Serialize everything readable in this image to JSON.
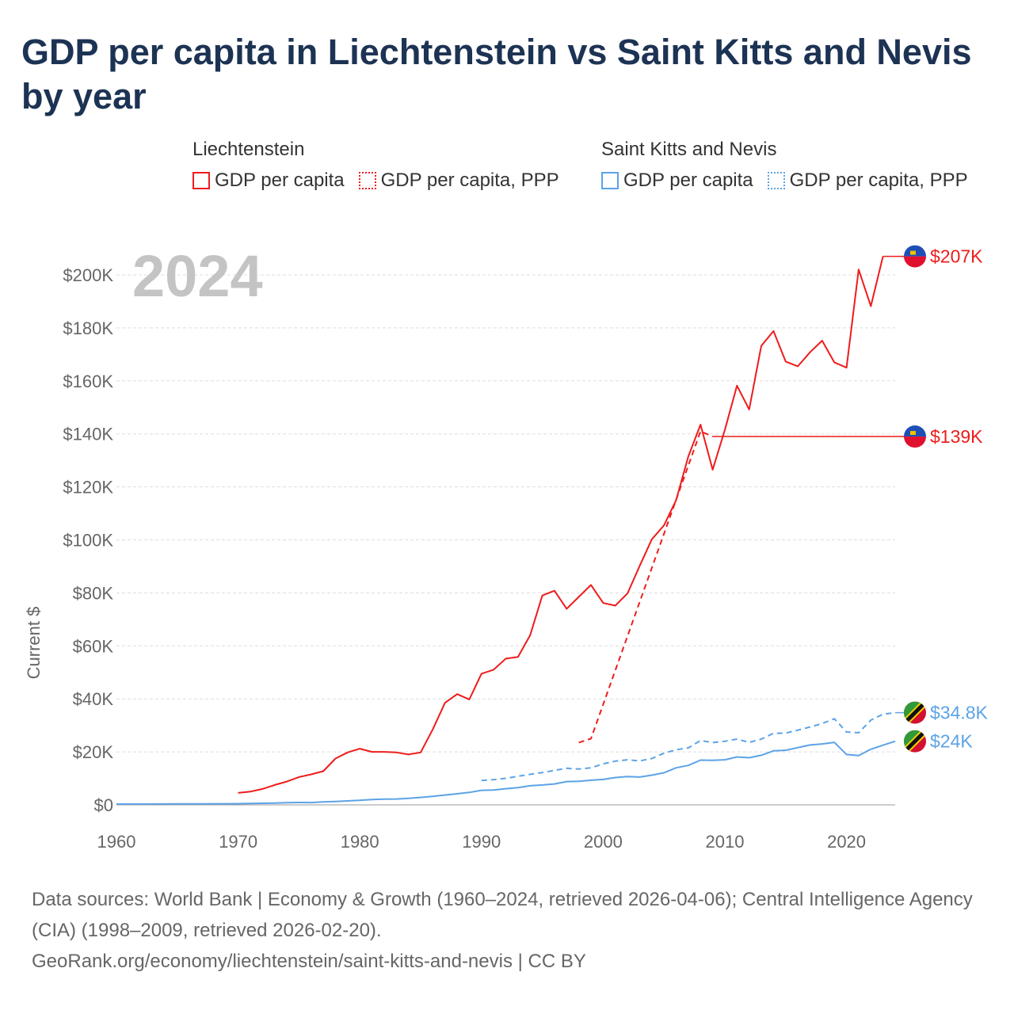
{
  "title": "GDP per capita in Liechtenstein vs Saint Kitts and Nevis by year",
  "legend": {
    "groups": [
      {
        "name": "Liechtenstein",
        "items": [
          "GDP per capita",
          "GDP per capita, PPP"
        ],
        "color": "#ee1c1c"
      },
      {
        "name": "Saint Kitts and Nevis",
        "items": [
          "GDP per capita",
          "GDP per capita, PPP"
        ],
        "color": "#5ca3e6"
      }
    ]
  },
  "chart_data": {
    "type": "line",
    "year_label": "2024",
    "ylabel": "Current $",
    "xlim": [
      1960,
      2024
    ],
    "ylim": [
      0,
      200000
    ],
    "x_ticks": [
      1960,
      1970,
      1980,
      1990,
      2000,
      2010,
      2020
    ],
    "x_tick_labels": [
      "1960",
      "1970",
      "1980",
      "1990",
      "2000",
      "2010",
      "2020"
    ],
    "y_ticks": [
      0,
      20000,
      40000,
      60000,
      80000,
      100000,
      120000,
      140000,
      160000,
      180000,
      200000
    ],
    "y_tick_labels": [
      "$0",
      "$20K",
      "$40K",
      "$60K",
      "$80K",
      "$100K",
      "$120K",
      "$140K",
      "$160K",
      "$180K",
      "$200K"
    ],
    "grid": true,
    "series": [
      {
        "name": "Liechtenstein GDP per capita",
        "color": "#ee1c1c",
        "dash": "solid",
        "end_label": "$207K",
        "extend_to_label": true,
        "x": [
          1970,
          1971,
          1972,
          1973,
          1974,
          1975,
          1976,
          1977,
          1978,
          1979,
          1980,
          1981,
          1982,
          1983,
          1984,
          1985,
          1986,
          1987,
          1988,
          1989,
          1990,
          1991,
          1992,
          1993,
          1994,
          1995,
          1996,
          1997,
          1998,
          1999,
          2000,
          2001,
          2002,
          2003,
          2004,
          2005,
          2006,
          2007,
          2008,
          2009,
          2010,
          2011,
          2012,
          2013,
          2014,
          2015,
          2016,
          2017,
          2018,
          2019,
          2020,
          2021,
          2022,
          2023
        ],
        "y": [
          4500,
          5000,
          6000,
          7500,
          8800,
          10500,
          11500,
          12700,
          17500,
          19800,
          21200,
          20000,
          20000,
          19800,
          19000,
          19800,
          28500,
          38500,
          41800,
          39800,
          49500,
          51000,
          55200,
          55800,
          64000,
          79000,
          80800,
          74000,
          78500,
          83000,
          76200,
          75200,
          79800,
          90200,
          100200,
          105500,
          115000,
          131500,
          143500,
          126500,
          141500,
          158200,
          149200,
          173200,
          178800,
          167300,
          165500,
          170800,
          175200,
          167000,
          165000,
          202000,
          188200,
          207000
        ]
      },
      {
        "name": "Liechtenstein GDP per capita, PPP",
        "color": "#ee1c1c",
        "dash": "dashed",
        "end_label": "$139K",
        "extend_to_label": true,
        "x": [
          1998,
          1999,
          2008,
          2009
        ],
        "y": [
          23500,
          25000,
          141000,
          139000
        ]
      },
      {
        "name": "Saint Kitts and Nevis GDP per capita",
        "color": "#5ca3e6",
        "dash": "solid",
        "end_label": "$24K",
        "extend_to_label": false,
        "x": [
          1960,
          1961,
          1962,
          1963,
          1964,
          1965,
          1966,
          1967,
          1968,
          1969,
          1970,
          1971,
          1972,
          1973,
          1974,
          1975,
          1976,
          1977,
          1978,
          1979,
          1980,
          1981,
          1982,
          1983,
          1984,
          1985,
          1986,
          1987,
          1988,
          1989,
          1990,
          1991,
          1992,
          1993,
          1994,
          1995,
          1996,
          1997,
          1998,
          1999,
          2000,
          2001,
          2002,
          2003,
          2004,
          2005,
          2006,
          2007,
          2008,
          2009,
          2010,
          2011,
          2012,
          2013,
          2014,
          2015,
          2016,
          2017,
          2018,
          2019,
          2020,
          2021,
          2022,
          2023,
          2024
        ],
        "y": [
          300,
          300,
          300,
          320,
          330,
          350,
          370,
          390,
          410,
          430,
          460,
          520,
          600,
          680,
          820,
          900,
          880,
          1150,
          1300,
          1500,
          1700,
          2000,
          2150,
          2200,
          2450,
          2800,
          3200,
          3700,
          4200,
          4700,
          5500,
          5600,
          6100,
          6500,
          7200,
          7500,
          7900,
          8800,
          8900,
          9300,
          9600,
          10300,
          10700,
          10500,
          11200,
          12100,
          14000,
          14900,
          16900,
          16800,
          17000,
          18100,
          17800,
          18700,
          20400,
          20600,
          21600,
          22600,
          23000,
          23600,
          19000,
          18600,
          21000,
          22500,
          24000
        ]
      },
      {
        "name": "Saint Kitts and Nevis GDP per capita, PPP",
        "color": "#5ca3e6",
        "dash": "dashed",
        "end_label": "$34.8K",
        "extend_to_label": true,
        "x": [
          1990,
          1991,
          1992,
          1993,
          1994,
          1995,
          1996,
          1997,
          1998,
          1999,
          2000,
          2001,
          2002,
          2003,
          2004,
          2005,
          2006,
          2007,
          2008,
          2009,
          2010,
          2011,
          2012,
          2013,
          2014,
          2015,
          2016,
          2017,
          2018,
          2019,
          2020,
          2021,
          2022,
          2023,
          2024
        ],
        "y": [
          9200,
          9500,
          10000,
          10800,
          11500,
          12200,
          13000,
          13800,
          13500,
          14000,
          15500,
          16500,
          17000,
          16600,
          17500,
          19500,
          20800,
          21500,
          24300,
          23500,
          24000,
          24800,
          23600,
          24800,
          27000,
          27100,
          28200,
          29400,
          30700,
          32500,
          27500,
          27200,
          32000,
          34200,
          34800
        ]
      }
    ]
  },
  "footer": {
    "line1": "Data sources: World Bank | Economy & Growth (1960–2024, retrieved 2026-04-06); Central Intelligence Agency (CIA) (1998–2009, retrieved 2026-02-20).",
    "line2": "GeoRank.org/economy/liechtenstein/saint-kitts-and-nevis | CC BY"
  }
}
